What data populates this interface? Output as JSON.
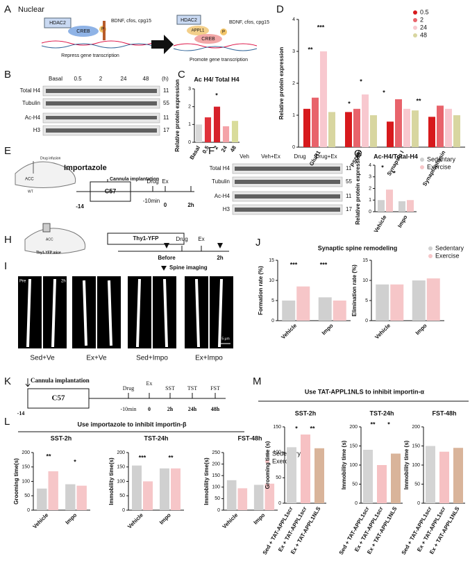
{
  "panel_letters": [
    "A",
    "B",
    "C",
    "D",
    "E",
    "F",
    "G",
    "H",
    "I",
    "J",
    "K",
    "L",
    "M"
  ],
  "diagrams": {
    "A": {
      "title": "Nuclear",
      "texts": [
        "HDAC2",
        "CREB",
        "P",
        "BDNF, cfos, cpg15",
        "Repress gene transcription",
        "HDAC2",
        "APPL1",
        "CREB",
        "P",
        "BDNF, cfos, cpg15",
        "Promote gene transcription"
      ]
    },
    "B": {
      "texts": [
        "Basal",
        "0.5",
        "2",
        "24",
        "48",
        "(h)",
        "Total H4",
        "Tubulin",
        "Ac-H4",
        "H3",
        "11",
        "55",
        "11",
        "17"
      ]
    },
    "E": {
      "texts": [
        "Importazole",
        "Drug infusion",
        "ACC",
        "WT",
        "Cannula implantation",
        "C57",
        "Drug",
        "Ex",
        "-14",
        "-10min",
        "0",
        "2h"
      ]
    },
    "F": {
      "texts": [
        "Veh",
        "Veh+Ex",
        "Drug",
        "Drug+Ex",
        "Total H4",
        "Tubulin",
        "Ac-H4",
        "H3",
        "11",
        "55",
        "11",
        "17"
      ]
    },
    "H": {
      "texts": [
        "ACC",
        "Thy1-YFP mice",
        "Thy1-YFP",
        "Before",
        "Drug",
        "Ex",
        "2h"
      ]
    },
    "I": {
      "texts": [
        "Spine imaging",
        "Pre",
        "2h",
        "Sed+Ve",
        "Ex+Ve",
        "Sed+Impo",
        "Ex+Impo",
        "5 μm"
      ]
    },
    "K": {
      "texts": [
        "Cannula implantation",
        "C57",
        "Drug",
        "Ex",
        "SST",
        "TST",
        "FST",
        "-14",
        "-10min",
        "0",
        "2h",
        "24h",
        "48h"
      ]
    },
    "L": {
      "title": "Use importazole to inhibit importin-β"
    },
    "M": {
      "title": "Use TAT-APPL1NLS to inhibit importin-α"
    }
  },
  "chart_data": [
    {
      "type": "bar",
      "title": "Ac H4/ Total H4",
      "ylabel": "Relative protein expression",
      "categories": [
        "Basal",
        "0.5",
        "2",
        "24",
        "48"
      ],
      "values": [
        1.0,
        1.4,
        2.0,
        0.9,
        1.2
      ],
      "colors": [
        "#d9d9d9",
        "#e0313a",
        "#d6202a",
        "#f4a3a8",
        "#d9dc9b"
      ],
      "ylim": [
        0,
        3
      ],
      "yticks": [
        0,
        1,
        2,
        3
      ],
      "annotations": [
        "*"
      ]
    },
    {
      "type": "bar",
      "ylabel": "Relative protein expression",
      "categories": [
        "GluR1",
        "PSD95",
        "Synapsin I",
        "Synaptophysin"
      ],
      "series": [
        {
          "name": "0.5",
          "color": "#d7191c",
          "values": [
            1.2,
            1.1,
            0.8,
            0.95
          ]
        },
        {
          "name": "2",
          "color": "#e8636b",
          "values": [
            1.55,
            1.2,
            1.5,
            1.3
          ]
        },
        {
          "name": "24",
          "color": "#f8c8cf",
          "values": [
            3.0,
            1.65,
            1.2,
            1.2
          ]
        },
        {
          "name": "48",
          "color": "#d8d6a0",
          "values": [
            1.1,
            1.0,
            1.15,
            1.0
          ]
        }
      ],
      "ylim": [
        0,
        4
      ],
      "yticks": [
        0,
        1,
        2,
        3,
        4
      ],
      "annotations": [
        "**",
        "***",
        "*",
        "*",
        "*",
        "**"
      ]
    },
    {
      "type": "bar",
      "title": "Ac-H4/Total-H4",
      "ylabel": "Relative protein expression",
      "categories": [
        "Vehicle",
        "Impo"
      ],
      "series": [
        {
          "name": "Sedentary",
          "color": "#d0d0d0",
          "values": [
            1.0,
            0.9
          ]
        },
        {
          "name": "Exercise",
          "color": "#f6c6c8",
          "values": [
            1.9,
            1.0
          ]
        }
      ],
      "ylim": [
        0,
        4
      ],
      "yticks": [
        0,
        1,
        2,
        3,
        4
      ],
      "annotations": [
        "*",
        "*"
      ]
    },
    {
      "type": "bar",
      "title": "Synaptic spine remodeling",
      "ylabel": "Formation rate (%)",
      "categories": [
        "Vehicle",
        "Impo"
      ],
      "series": [
        {
          "color": "#d0d0d0",
          "values": [
            5.0,
            5.8
          ]
        },
        {
          "color": "#f6c6c8",
          "values": [
            8.5,
            5.0
          ]
        }
      ],
      "ylim": [
        0,
        15
      ],
      "yticks": [
        0,
        5,
        10,
        15
      ],
      "annotations": [
        "***",
        "***"
      ]
    },
    {
      "type": "bar",
      "ylabel": "Elimination rate (%)",
      "categories": [
        "Vehicle",
        "Impo"
      ],
      "series": [
        {
          "name": "Sedentary",
          "color": "#d0d0d0",
          "values": [
            9.0,
            10.0
          ]
        },
        {
          "name": "Exercise",
          "color": "#f6c6c8",
          "values": [
            9.0,
            10.5
          ]
        }
      ],
      "ylim": [
        0,
        15
      ],
      "yticks": [
        0,
        5,
        10,
        15
      ]
    },
    {
      "type": "bar",
      "title": "SST-2h",
      "ylabel": "Grooming time(s)",
      "categories": [
        "Vehicle",
        "Impo"
      ],
      "series": [
        {
          "color": "#d0d0d0",
          "values": [
            75,
            90
          ]
        },
        {
          "color": "#f6c6c8",
          "values": [
            135,
            85
          ]
        }
      ],
      "ylim": [
        0,
        200
      ],
      "yticks": [
        0,
        50,
        100,
        150,
        200
      ],
      "annotations": [
        "**",
        "*"
      ]
    },
    {
      "type": "bar",
      "title": "TST-24h",
      "ylabel": "Immobility time(s)",
      "categories": [
        "Vehicle",
        "Impo"
      ],
      "series": [
        {
          "color": "#d0d0d0",
          "values": [
            155,
            145
          ]
        },
        {
          "color": "#f6c6c8",
          "values": [
            100,
            145
          ]
        }
      ],
      "ylim": [
        0,
        200
      ],
      "yticks": [
        0,
        50,
        100,
        150,
        200
      ],
      "annotations": [
        "***",
        "**"
      ]
    },
    {
      "type": "bar",
      "title": "FST-48h",
      "ylabel": "Immobility time(s)",
      "categories": [
        "Vehicle",
        "Impo"
      ],
      "series": [
        {
          "name": "Sedentary",
          "color": "#d0d0d0",
          "values": [
            130,
            110
          ]
        },
        {
          "name": "Exercise",
          "color": "#f6c6c8",
          "values": [
            95,
            115
          ]
        }
      ],
      "ylim": [
        0,
        250
      ],
      "yticks": [
        0,
        50,
        100,
        150,
        200,
        250
      ]
    },
    {
      "type": "bar",
      "title": "SST-2h",
      "ylabel": "Grooming time (s)",
      "categories": [
        "Sed + TAT-APPL1scr",
        "Ex + TAT-APPL1scr",
        "Ex + TAT-APPL1NLS"
      ],
      "values": [
        110,
        135,
        108
      ],
      "colors": [
        "#d4d4d4",
        "#f6c1c3",
        "#d9b49a"
      ],
      "ylim": [
        0,
        150
      ],
      "yticks": [
        0,
        50,
        100,
        150
      ],
      "annotations": [
        "*",
        "**"
      ]
    },
    {
      "type": "bar",
      "title": "TST-24h",
      "ylabel": "Immobility time (s)",
      "categories": [
        "Sed + TAT-APPL1scr",
        "Ex + TAT-APPL1scr",
        "Ex + TAT-APPL1NLS"
      ],
      "values": [
        140,
        100,
        130
      ],
      "colors": [
        "#d4d4d4",
        "#f6c1c3",
        "#d9b49a"
      ],
      "ylim": [
        0,
        200
      ],
      "yticks": [
        0,
        50,
        100,
        150,
        200
      ],
      "annotations": [
        "**",
        "*"
      ]
    },
    {
      "type": "bar",
      "title": "FST-48h",
      "ylabel": "Immobility time (s)",
      "categories": [
        "Sed + TAT-APPL1scr",
        "Ex + TAT-APPL1scr",
        "Ex + TAT-APPL1NLS"
      ],
      "values": [
        150,
        135,
        145
      ],
      "colors": [
        "#d4d4d4",
        "#f6c1c3",
        "#d9b49a"
      ],
      "ylim": [
        0,
        200
      ],
      "yticks": [
        0,
        50,
        100,
        150,
        200
      ]
    }
  ]
}
